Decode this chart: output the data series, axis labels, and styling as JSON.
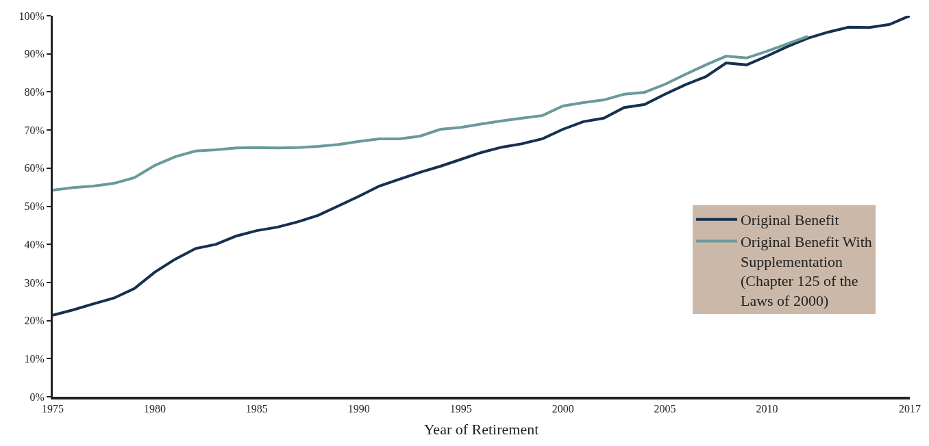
{
  "chart_data": {
    "type": "line",
    "xlabel": "Year of Retirement",
    "categories": [
      "1975",
      null,
      null,
      null,
      null,
      "1980",
      null,
      null,
      null,
      null,
      "1985",
      null,
      null,
      null,
      null,
      "1990",
      null,
      null,
      null,
      null,
      "1995",
      null,
      null,
      null,
      null,
      "2000",
      null,
      null,
      null,
      null,
      "2005",
      null,
      null,
      null,
      null,
      "2010",
      null,
      null,
      null,
      null,
      null,
      null,
      "2017"
    ],
    "series": [
      {
        "name": "Original Benefit",
        "color": "#16304f",
        "values": [
          21.4,
          22.8,
          24.4,
          25.9,
          28.4,
          32.7,
          36.1,
          38.9,
          40.0,
          42.2,
          43.6,
          44.5,
          45.9,
          47.6,
          50.1,
          52.6,
          55.3,
          57.1,
          58.9,
          60.5,
          62.3,
          64.1,
          65.5,
          66.4,
          67.7,
          70.2,
          72.2,
          73.1,
          75.9,
          76.7,
          79.4,
          81.9,
          84.0,
          87.6,
          87.1,
          89.4,
          91.9,
          94.1,
          95.7,
          97.0,
          96.9,
          97.7,
          100
        ]
      },
      {
        "name": "Original Benefit With Supplementation (Chapter 125 of the Laws of 2000)",
        "color": "#6a9a9b",
        "values": [
          54.2,
          54.9,
          55.3,
          56.0,
          57.5,
          60.7,
          63.0,
          64.5,
          64.8,
          65.3,
          65.4,
          65.3,
          65.4,
          65.7,
          66.2,
          67.0,
          67.7,
          67.7,
          68.4,
          70.2,
          70.7,
          71.6,
          72.4,
          73.1,
          73.8,
          76.3,
          77.2,
          77.9,
          79.4,
          79.9,
          82.0,
          84.6,
          87.1,
          89.4,
          88.9,
          90.7,
          92.6,
          94.6,
          null,
          null,
          null,
          null,
          null
        ]
      }
    ],
    "ylim": [
      0,
      100
    ],
    "yticks": [
      {
        "value": 0,
        "label": "0%"
      },
      {
        "value": 10,
        "label": "10%"
      },
      {
        "value": 20,
        "label": "20%"
      },
      {
        "value": 30,
        "label": "30%"
      },
      {
        "value": 40,
        "label": "40%"
      },
      {
        "value": 50,
        "label": "50%"
      },
      {
        "value": 60,
        "label": "60%"
      },
      {
        "value": 70,
        "label": "70%"
      },
      {
        "value": 80,
        "label": "80%"
      },
      {
        "value": 90,
        "label": "90%"
      },
      {
        "value": 100,
        "label": "100%"
      }
    ],
    "legend": "right",
    "marker": "none",
    "line_style": "solid"
  }
}
